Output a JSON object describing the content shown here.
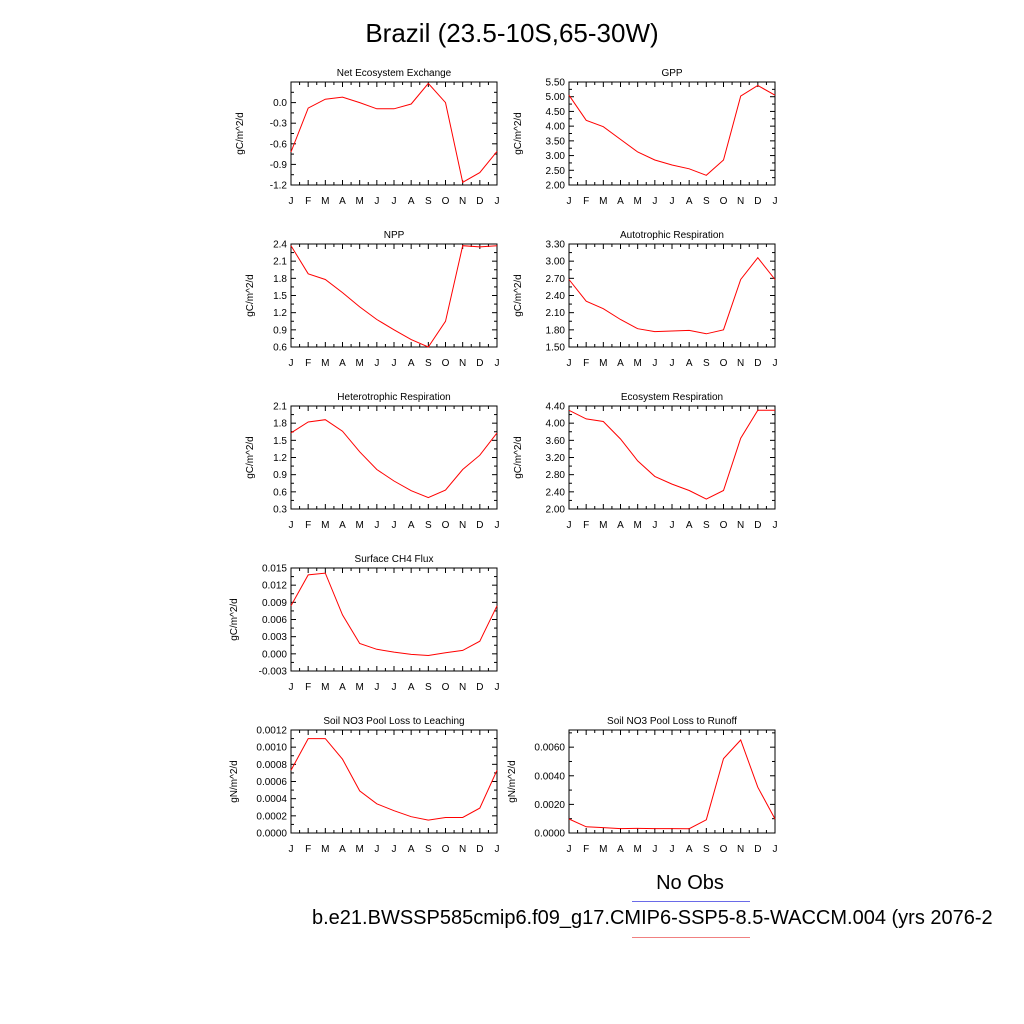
{
  "title": "Brazil (23.5-10S,65-30W)",
  "legend": {
    "no_obs": "No Obs",
    "case_label": "b.e21.BWSSP585cmip6.f09_g17.CMIP6-SSP5-8.5-WACCM.004 (yrs 2076-2",
    "obs_color": "#6a6ae8",
    "case_color": "#f08080",
    "line_color": "#ff0000"
  },
  "chart_data": [
    {
      "type": "line",
      "title": "Net Ecosystem Exchange",
      "ylabel": "gC/m^2/d",
      "categories": [
        "J",
        "F",
        "M",
        "A",
        "M",
        "J",
        "J",
        "A",
        "S",
        "O",
        "N",
        "D",
        "J"
      ],
      "values": [
        -0.72,
        -0.08,
        0.05,
        0.08,
        0.0,
        -0.09,
        -0.09,
        -0.02,
        0.28,
        0.0,
        -1.16,
        -1.02,
        -0.71
      ],
      "ylim": [
        -1.2,
        0.3
      ],
      "yticks": [
        "-1.2",
        "-0.9",
        "-0.6",
        "-0.3",
        "0.0"
      ]
    },
    {
      "type": "line",
      "title": "GPP",
      "ylabel": "gC/m^2/d",
      "categories": [
        "J",
        "F",
        "M",
        "A",
        "M",
        "J",
        "J",
        "A",
        "S",
        "O",
        "N",
        "D",
        "J"
      ],
      "values": [
        5.05,
        4.2,
        3.98,
        3.55,
        3.12,
        2.85,
        2.68,
        2.55,
        2.33,
        2.85,
        5.02,
        5.38,
        5.05
      ],
      "ylim": [
        2.0,
        5.5
      ],
      "yticks": [
        "2.00",
        "2.50",
        "3.00",
        "3.50",
        "4.00",
        "4.50",
        "5.00",
        "5.50"
      ]
    },
    {
      "type": "line",
      "title": "NPP",
      "ylabel": "gC/m^2/d",
      "categories": [
        "J",
        "F",
        "M",
        "A",
        "M",
        "J",
        "J",
        "A",
        "S",
        "O",
        "N",
        "D",
        "J"
      ],
      "values": [
        2.37,
        1.88,
        1.78,
        1.55,
        1.3,
        1.08,
        0.9,
        0.73,
        0.6,
        1.05,
        2.37,
        2.35,
        2.37
      ],
      "ylim": [
        0.6,
        2.4
      ],
      "yticks": [
        "0.6",
        "0.9",
        "1.2",
        "1.5",
        "1.8",
        "2.1",
        "2.4"
      ]
    },
    {
      "type": "line",
      "title": "Autotrophic Respiration",
      "ylabel": "gC/m^2/d",
      "categories": [
        "J",
        "F",
        "M",
        "A",
        "M",
        "J",
        "J",
        "A",
        "S",
        "O",
        "N",
        "D",
        "J"
      ],
      "values": [
        2.68,
        2.3,
        2.17,
        1.98,
        1.82,
        1.77,
        1.78,
        1.79,
        1.73,
        1.8,
        2.68,
        3.06,
        2.68
      ],
      "ylim": [
        1.5,
        3.3
      ],
      "yticks": [
        "1.50",
        "1.80",
        "2.10",
        "2.40",
        "2.70",
        "3.00",
        "3.30"
      ]
    },
    {
      "type": "line",
      "title": "Heterotrophic Respiration",
      "ylabel": "gC/m^2/d",
      "categories": [
        "J",
        "F",
        "M",
        "A",
        "M",
        "J",
        "J",
        "A",
        "S",
        "O",
        "N",
        "D",
        "J"
      ],
      "values": [
        1.63,
        1.82,
        1.86,
        1.66,
        1.3,
        0.99,
        0.79,
        0.62,
        0.5,
        0.63,
        0.99,
        1.24,
        1.63
      ],
      "ylim": [
        0.3,
        2.1
      ],
      "yticks": [
        "0.3",
        "0.6",
        "0.9",
        "1.2",
        "1.5",
        "1.8",
        "2.1"
      ]
    },
    {
      "type": "line",
      "title": "Ecosystem Respiration",
      "ylabel": "gC/m^2/d",
      "categories": [
        "J",
        "F",
        "M",
        "A",
        "M",
        "J",
        "J",
        "A",
        "S",
        "O",
        "N",
        "D",
        "J"
      ],
      "values": [
        4.3,
        4.1,
        4.04,
        3.63,
        3.12,
        2.76,
        2.58,
        2.43,
        2.23,
        2.43,
        3.65,
        4.3,
        4.3
      ],
      "ylim": [
        2.0,
        4.4
      ],
      "yticks": [
        "2.00",
        "2.40",
        "2.80",
        "3.20",
        "3.60",
        "4.00",
        "4.40"
      ]
    },
    {
      "type": "line",
      "title": "Surface CH4 Flux",
      "ylabel": "gC/m^2/d",
      "categories": [
        "J",
        "F",
        "M",
        "A",
        "M",
        "J",
        "J",
        "A",
        "S",
        "O",
        "N",
        "D",
        "J"
      ],
      "values": [
        0.0084,
        0.0138,
        0.0141,
        0.0068,
        0.0018,
        0.0008,
        0.0003,
        -0.0001,
        -0.0003,
        0.0002,
        0.0006,
        0.0022,
        0.0084
      ],
      "ylim": [
        -0.003,
        0.015
      ],
      "yticks": [
        "-0.003",
        "0.000",
        "0.003",
        "0.006",
        "0.009",
        "0.012",
        "0.015"
      ]
    },
    {
      "type": "line",
      "title": "Soil NO3 Pool Loss to Leaching",
      "ylabel": "gN/m^2/d",
      "categories": [
        "J",
        "F",
        "M",
        "A",
        "M",
        "J",
        "J",
        "A",
        "S",
        "O",
        "N",
        "D",
        "J"
      ],
      "values": [
        0.00073,
        0.0011,
        0.0011,
        0.00086,
        0.00049,
        0.00034,
        0.00026,
        0.00019,
        0.00015,
        0.00018,
        0.00018,
        0.00029,
        0.00073
      ],
      "ylim": [
        0.0,
        0.0012
      ],
      "yticks": [
        "0.0000",
        "0.0002",
        "0.0004",
        "0.0006",
        "0.0008",
        "0.0010",
        "0.0012"
      ]
    },
    {
      "type": "line",
      "title": "Soil NO3 Pool Loss to Runoff",
      "ylabel": "gN/m^2/d",
      "categories": [
        "J",
        "F",
        "M",
        "A",
        "M",
        "J",
        "J",
        "A",
        "S",
        "O",
        "N",
        "D",
        "J"
      ],
      "values": [
        0.00098,
        0.00043,
        0.00038,
        0.00031,
        0.00032,
        0.00031,
        0.00031,
        0.0003,
        0.00092,
        0.0052,
        0.0065,
        0.0032,
        0.00098
      ],
      "ylim": [
        0.0,
        0.0072
      ],
      "yticks": [
        "0.0000",
        "0.0020",
        "0.0040",
        "0.0060"
      ]
    }
  ]
}
